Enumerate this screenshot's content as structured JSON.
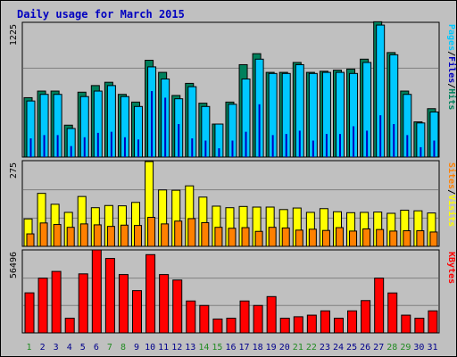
{
  "title": "Daily usage for March 2015",
  "colors": {
    "background": "#c0c0c0",
    "hits": "#00805c",
    "files": "#00c8ff",
    "pages": "#0000c0",
    "visits": "#ffff00",
    "sites": "#ff8000",
    "kbytes": "#ff0000",
    "weekday_label": "#00008b",
    "weekend_label": "#228b22"
  },
  "side_labels": {
    "top": [
      "Pages",
      "Files",
      "Hits"
    ],
    "middle": [
      "Sites",
      "Visits"
    ],
    "bottom": [
      "KBytes"
    ]
  },
  "side_separator": "/",
  "chart_data": [
    {
      "type": "bar",
      "title": "Daily usage for March 2015",
      "panel": "hits-files-pages",
      "categories": [
        "1",
        "2",
        "3",
        "4",
        "5",
        "6",
        "7",
        "8",
        "9",
        "10",
        "11",
        "12",
        "13",
        "14",
        "15",
        "16",
        "17",
        "18",
        "19",
        "20",
        "21",
        "22",
        "23",
        "24",
        "25",
        "26",
        "27",
        "28",
        "29",
        "30",
        "31"
      ],
      "ylabel_max": "1225",
      "ylim": [
        0,
        1225
      ],
      "series": [
        {
          "name": "Hits",
          "values": [
            540,
            600,
            600,
            290,
            590,
            650,
            680,
            570,
            500,
            880,
            770,
            560,
            670,
            490,
            300,
            500,
            840,
            940,
            770,
            770,
            860,
            770,
            780,
            790,
            800,
            890,
            1230,
            950,
            600,
            320,
            440
          ]
        },
        {
          "name": "Files",
          "values": [
            510,
            570,
            570,
            260,
            550,
            600,
            650,
            550,
            460,
            820,
            710,
            530,
            640,
            460,
            300,
            480,
            710,
            890,
            760,
            760,
            840,
            760,
            770,
            770,
            760,
            860,
            1200,
            930,
            570,
            310,
            410
          ]
        },
        {
          "name": "Pages",
          "values": [
            170,
            200,
            200,
            100,
            180,
            220,
            230,
            180,
            160,
            600,
            540,
            300,
            170,
            150,
            80,
            150,
            230,
            480,
            200,
            210,
            240,
            150,
            210,
            210,
            280,
            240,
            380,
            300,
            200,
            90,
            150
          ]
        }
      ]
    },
    {
      "type": "bar",
      "panel": "visits-sites",
      "categories": [
        "1",
        "2",
        "3",
        "4",
        "5",
        "6",
        "7",
        "8",
        "9",
        "10",
        "11",
        "12",
        "13",
        "14",
        "15",
        "16",
        "17",
        "18",
        "19",
        "20",
        "21",
        "22",
        "23",
        "24",
        "25",
        "26",
        "27",
        "28",
        "29",
        "30",
        "31"
      ],
      "ylabel_max": "275",
      "ylim": [
        0,
        275
      ],
      "series": [
        {
          "name": "Visits",
          "values": [
            88,
            170,
            135,
            109,
            160,
            124,
            131,
            130,
            141,
            272,
            181,
            180,
            194,
            158,
            129,
            124,
            128,
            126,
            126,
            118,
            123,
            109,
            121,
            111,
            108,
            109,
            110,
            106,
            116,
            114,
            107
          ]
        },
        {
          "name": "Sites",
          "values": [
            40,
            75,
            70,
            61,
            72,
            69,
            64,
            68,
            67,
            93,
            72,
            81,
            89,
            76,
            61,
            58,
            60,
            48,
            61,
            59,
            52,
            55,
            51,
            60,
            49,
            56,
            54,
            49,
            50,
            50,
            46
          ]
        }
      ]
    },
    {
      "type": "bar",
      "panel": "kbytes",
      "categories": [
        "1",
        "2",
        "3",
        "4",
        "5",
        "6",
        "7",
        "8",
        "9",
        "10",
        "11",
        "12",
        "13",
        "14",
        "15",
        "16",
        "17",
        "18",
        "19",
        "20",
        "21",
        "22",
        "23",
        "24",
        "25",
        "26",
        "27",
        "28",
        "29",
        "30",
        "31"
      ],
      "ylabel_max": "56496",
      "ylim": [
        0,
        56496
      ],
      "series": [
        {
          "name": "KBytes",
          "values": [
            27270,
            37270,
            41850,
            10000,
            40200,
            56500,
            50680,
            39730,
            28780,
            53280,
            39730,
            36000,
            21730,
            18670,
            9450,
            10000,
            21730,
            18670,
            24720,
            10000,
            11000,
            12100,
            15000,
            10000,
            15000,
            22000,
            37290,
            27200,
            12100,
            10000,
            15000
          ]
        }
      ]
    }
  ]
}
